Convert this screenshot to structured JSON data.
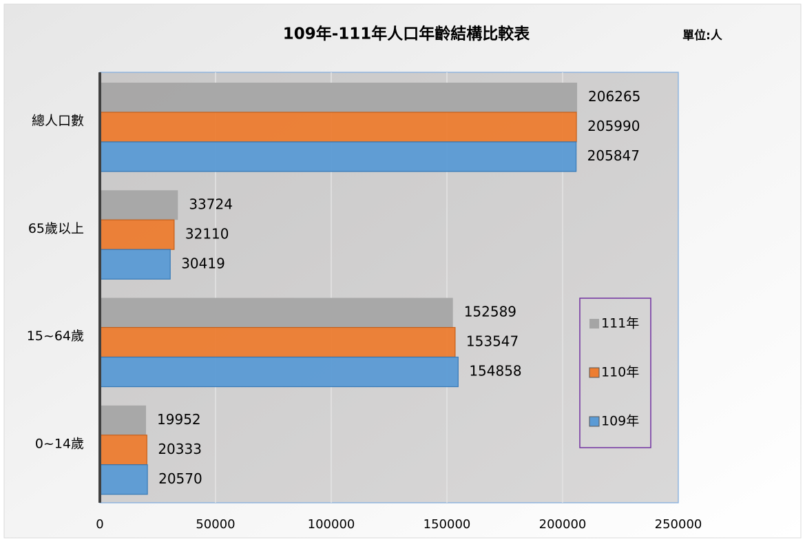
{
  "chart_data": {
    "type": "bar",
    "orientation": "horizontal",
    "title": "109年-111年人口年齡結構比較表",
    "unit": "單位:人",
    "categories": [
      "總人口數",
      "65歲以上",
      "15~64歲",
      "0~14歲"
    ],
    "series": [
      {
        "name": "111年",
        "color": "#a5a5a5",
        "values": [
          206265,
          33724,
          152589,
          19952
        ]
      },
      {
        "name": "110年",
        "color": "#ed7d31",
        "values": [
          205990,
          32110,
          153547,
          20333
        ]
      },
      {
        "name": "109年",
        "color": "#5b9bd5",
        "values": [
          205847,
          30419,
          154858,
          20570
        ]
      }
    ],
    "xlim": [
      0,
      250000
    ],
    "xticks": [
      0,
      50000,
      100000,
      150000,
      200000,
      250000
    ],
    "grid": true,
    "legend": "right"
  }
}
